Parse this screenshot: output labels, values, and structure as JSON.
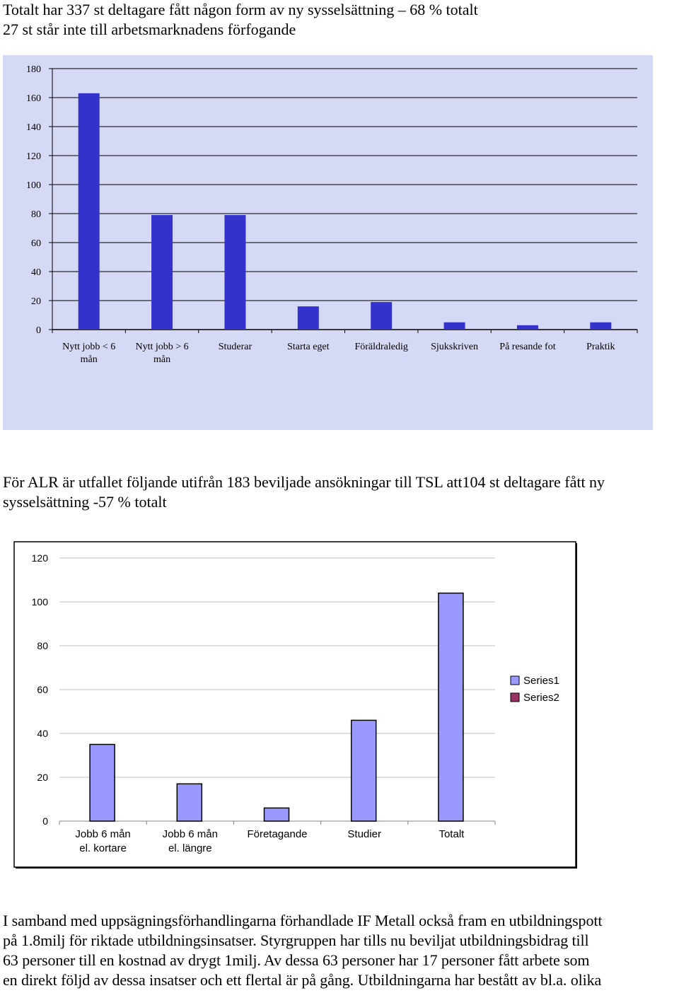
{
  "intro": {
    "line1": "Totalt har 337 st deltagare fått någon form av ny sysselsättning – 68 % totalt",
    "line2": "27 st står inte till arbetsmarknadens förfogande"
  },
  "middle": {
    "text": "För ALR är utfallet följande utifrån 183 beviljade ansökningar till TSL att104 st deltagare fått ny\nsysselsättning -57 % totalt"
  },
  "outro": {
    "text": "I samband med uppsägningsförhandlingarna förhandlade IF Metall också fram en utbildningspott\npå 1.8milj för riktade utbildningsinsatser. Styrgruppen har tills nu beviljat utbildningsbidrag till\n63 personer till en kostnad av drygt 1milj. Av dessa 63 personer har 17 personer fått arbete som\nen direkt följd av dessa insatser och ett flertal är på gång. Utbildningarna har bestått av bl.a. olika"
  },
  "chart_data": [
    {
      "type": "bar",
      "categories": [
        "Nytt jobb < 6\nmån",
        "Nytt jobb > 6\nmån",
        "Studerar",
        "Starta eget",
        "Föräldraledig",
        "Sjukskriven",
        "På resande fot",
        "Praktik"
      ],
      "series": [
        {
          "values": [
            163,
            79,
            79,
            16,
            19,
            5,
            3,
            5
          ]
        }
      ],
      "yticks": [
        "0",
        "20",
        "40",
        "60",
        "80",
        "100",
        "120",
        "140",
        "160",
        "180"
      ],
      "ylim": [
        0,
        180
      ],
      "grid": true,
      "legend": "none",
      "colors": {
        "plot_bg": "#d6d9f5",
        "bar": "#3333cc",
        "grid": "#000000"
      }
    },
    {
      "type": "bar",
      "categories": [
        "Jobb 6 mån\nel. kortare",
        "Jobb 6 mån\nel. längre",
        "Företagande",
        "Studier",
        "Totalt"
      ],
      "series": [
        {
          "name": "Series1",
          "values": [
            35,
            17,
            6,
            46,
            104
          ]
        },
        {
          "name": "Series2",
          "values": [
            0,
            0,
            0,
            0,
            0
          ]
        }
      ],
      "yticks": [
        "0",
        "20",
        "40",
        "60",
        "80",
        "100",
        "120"
      ],
      "ylim": [
        0,
        120
      ],
      "grid": true,
      "legend": "right",
      "colors": {
        "Series1": "#9999ff",
        "Series2": "#993366",
        "grid": "#c0c0c0",
        "frame": "#000000"
      }
    }
  ]
}
